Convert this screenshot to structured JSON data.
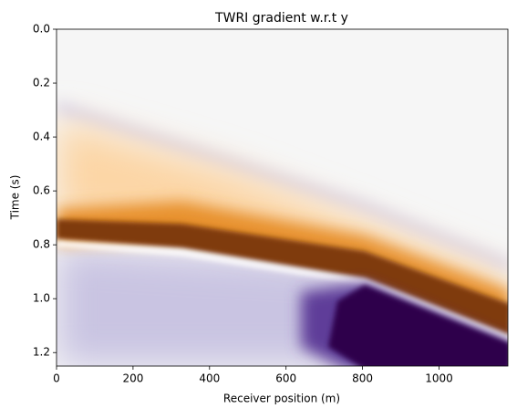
{
  "chart_data": {
    "type": "heatmap",
    "title": "TWRI gradient w.r.t y",
    "x_label": "Receiver position (m)",
    "y_label": "Time (s)",
    "xlim": [
      0,
      1180
    ],
    "xticks": [
      0,
      200,
      400,
      600,
      800,
      1000
    ],
    "ylim": [
      0,
      1.25
    ],
    "y_inverted": true,
    "yticks": [
      {
        "value": 0,
        "label": "0.0"
      },
      0.2,
      0.4,
      0.6,
      0.8,
      {
        "value": 1,
        "label": "1.0"
      },
      1.2
    ],
    "colormap": "PuOr"
  }
}
